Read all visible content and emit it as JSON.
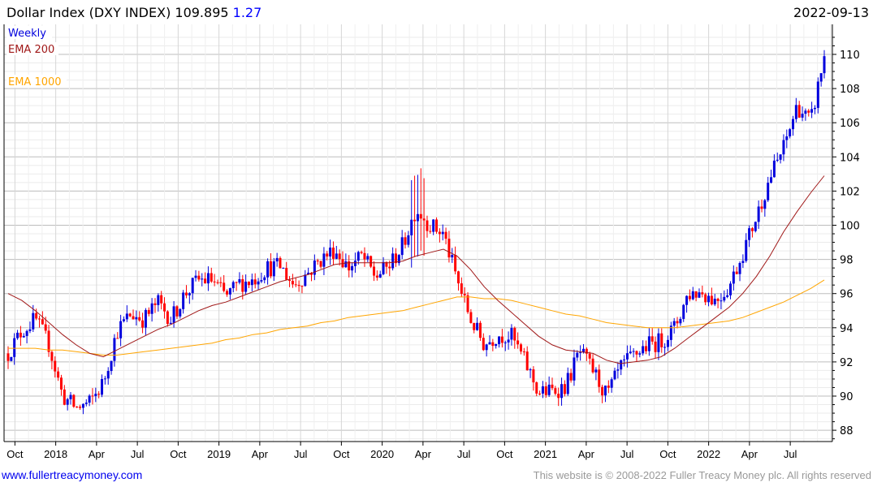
{
  "header": {
    "title": "Dollar Index (DXY INDEX) 109.895",
    "change": "1.27",
    "date": "2022-09-13"
  },
  "legend": {
    "weekly": "Weekly",
    "ema200": "EMA 200",
    "ema1000": "EMA 1000"
  },
  "footer": {
    "link": "www.fullertreacymoney.com",
    "copyright": "This website is © 2008-2022 Fuller Treacy Money plc. All rights reserved"
  },
  "colors": {
    "up": "#0000dd",
    "down": "#ff0000",
    "ema200": "#a01818",
    "ema1000": "#ffa500",
    "link": "#0000ee",
    "change": "#0000ff"
  },
  "chart_data": {
    "type": "candlestick",
    "title": "Dollar Index (DXY INDEX)",
    "interval": "weekly",
    "period": "Sep 2017 - Sep 2022",
    "last": 109.895,
    "change": 1.27,
    "ylim": [
      87.5,
      111
    ],
    "y_ticks": [
      "88",
      "90",
      "92",
      "94",
      "96",
      "98",
      "100",
      "102",
      "104",
      "106",
      "108",
      "110"
    ],
    "x_ticks": [
      "Oct",
      "2018",
      "Apr",
      "Jul",
      "Oct",
      "2019",
      "Apr",
      "Jul",
      "Oct",
      "2020",
      "Apr",
      "Jul",
      "Oct",
      "2021",
      "Apr",
      "Jul",
      "Oct",
      "2022",
      "Apr",
      "Jul"
    ],
    "grid": true,
    "legend_position": "top-left",
    "monthly_closes": [
      92.5,
      93.8,
      94.5,
      93.0,
      90.0,
      89.3,
      89.6,
      90.8,
      93.8,
      94.8,
      94.5,
      95.5,
      94.5,
      96.0,
      96.8,
      96.8,
      95.8,
      96.6,
      96.8,
      97.5,
      97.6,
      96.5,
      97.2,
      98.0,
      98.6,
      97.5,
      98.2,
      97.0,
      97.6,
      98.8,
      101.0,
      100.0,
      99.5,
      96.8,
      94.5,
      93.0,
      93.6,
      93.5,
      92.0,
      90.2,
      90.3,
      90.6,
      92.6,
      91.5,
      90.0,
      91.6,
      92.4,
      93.0,
      93.2,
      94.0,
      96.0,
      96.1,
      95.6,
      96.4,
      98.4,
      100.5,
      102.8,
      104.5,
      107.0,
      106.0,
      109.9
    ],
    "series": [
      {
        "name": "EMA 200",
        "values": [
          96.0,
          95.6,
          95.0,
          94.3,
          93.6,
          93.0,
          92.5,
          92.3,
          92.7,
          93.1,
          93.5,
          93.9,
          94.2,
          94.6,
          95.0,
          95.3,
          95.5,
          95.8,
          96.1,
          96.4,
          96.7,
          96.9,
          97.1,
          97.4,
          97.7,
          97.8,
          97.8,
          97.8,
          97.8,
          97.9,
          98.2,
          98.4,
          98.6,
          98.2,
          97.4,
          96.4,
          95.6,
          94.9,
          94.2,
          93.5,
          93.0,
          92.7,
          92.6,
          92.5,
          92.1,
          91.9,
          92.0,
          92.1,
          92.3,
          92.8,
          93.4,
          94.0,
          94.6,
          95.2,
          96.0,
          97.0,
          98.2,
          99.6,
          100.8,
          101.9,
          102.9
        ]
      },
      {
        "name": "EMA 1000",
        "values": [
          92.8,
          92.8,
          92.8,
          92.7,
          92.7,
          92.6,
          92.5,
          92.4,
          92.4,
          92.5,
          92.6,
          92.7,
          92.8,
          92.9,
          93.0,
          93.1,
          93.3,
          93.4,
          93.6,
          93.7,
          93.9,
          94.0,
          94.1,
          94.3,
          94.4,
          94.6,
          94.7,
          94.8,
          94.9,
          95.0,
          95.2,
          95.4,
          95.6,
          95.8,
          95.8,
          95.7,
          95.7,
          95.6,
          95.4,
          95.2,
          95.0,
          94.8,
          94.7,
          94.5,
          94.3,
          94.2,
          94.1,
          94.0,
          94.0,
          94.0,
          94.1,
          94.2,
          94.3,
          94.4,
          94.6,
          94.9,
          95.2,
          95.5,
          95.9,
          96.3,
          96.8
        ]
      }
    ]
  }
}
